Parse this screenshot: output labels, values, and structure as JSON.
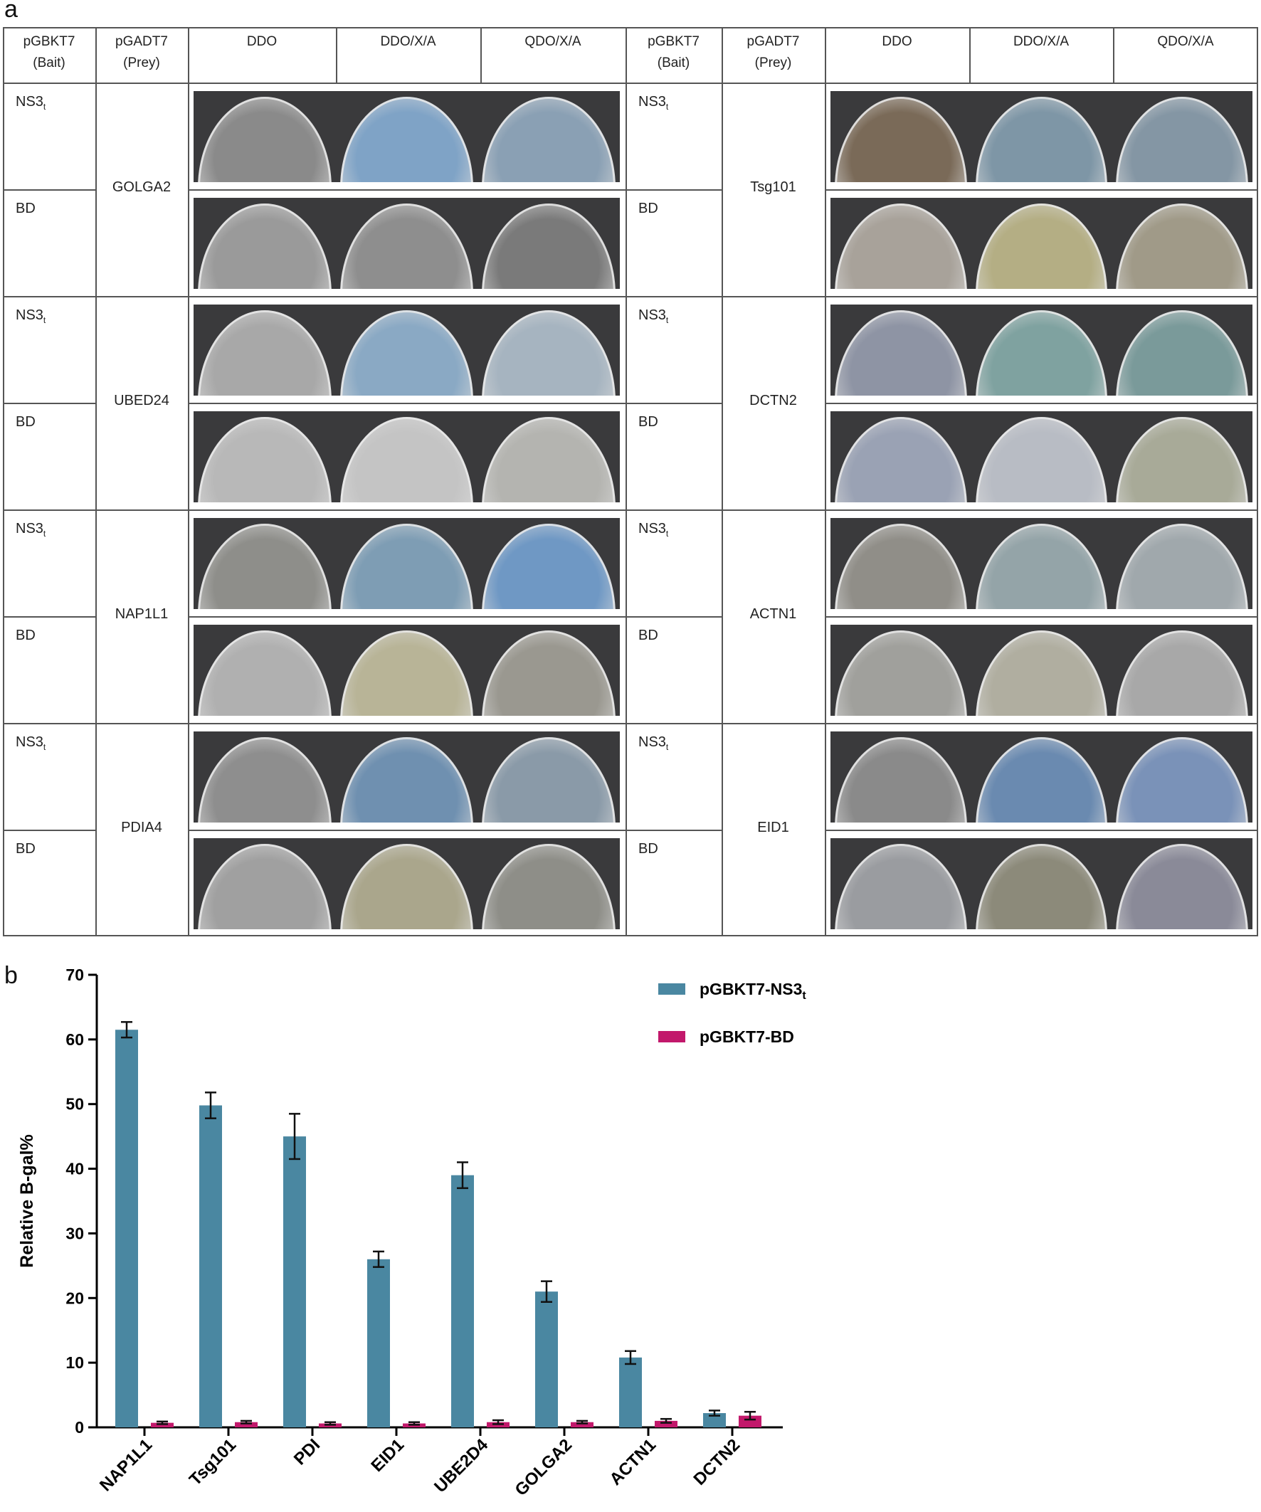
{
  "panel_a": {
    "label": "a",
    "headers": {
      "bait": "pGBKT7\n(Bait)",
      "prey": "pGADT7\n(Prey)",
      "ddo": "DDO",
      "ddo_xa": "DDO/X/A",
      "qdo_xa": "QDO/X/A"
    },
    "bait_ns3": "NS3",
    "bait_ns3_sub": "t",
    "bait_bd": "BD",
    "left_groups": [
      {
        "prey": "GOLGA2",
        "ns3_colors": [
          "#8a8a8a",
          "#7fa3c6",
          "#8aa0b4"
        ],
        "bd_colors": [
          "#9a9a9a",
          "#8e8e8e",
          "#7a7a7a"
        ]
      },
      {
        "prey": "UBED24",
        "ns3_colors": [
          "#a8a8a8",
          "#8aa9c4",
          "#a6b4c0"
        ],
        "bd_colors": [
          "#b8b8b8",
          "#c4c4c4",
          "#b4b4b0"
        ]
      },
      {
        "prey": "NAP1L1",
        "ns3_colors": [
          "#8e8e8a",
          "#7e9db4",
          "#6f98c4"
        ],
        "bd_colors": [
          "#b0b0b0",
          "#b8b497",
          "#9a9890"
        ]
      },
      {
        "prey": "PDIA4",
        "ns3_colors": [
          "#8e8e8e",
          "#6f90b0",
          "#8a9aa8"
        ],
        "bd_colors": [
          "#a0a0a0",
          "#aaa68c",
          "#8e8e88"
        ]
      }
    ],
    "right_groups": [
      {
        "prey": "Tsg101",
        "ns3_colors": [
          "#7a6a58",
          "#7e96a6",
          "#8496a4"
        ],
        "bd_colors": [
          "#a8a29a",
          "#b4ae84",
          "#a09a88"
        ]
      },
      {
        "prey": "DCTN2",
        "ns3_colors": [
          "#8e94a4",
          "#7fa2a0",
          "#7a9a9a"
        ],
        "bd_colors": [
          "#9aa2b4",
          "#b8bcc4",
          "#a8aa98"
        ]
      },
      {
        "prey": "ACTN1",
        "ns3_colors": [
          "#908e88",
          "#94a4a8",
          "#a0a8ac"
        ],
        "bd_colors": [
          "#a0a09c",
          "#b0aea0",
          "#a8a8a8"
        ]
      },
      {
        "prey": "EID1",
        "ns3_colors": [
          "#8a8a8a",
          "#6a8ab0",
          "#7a92b8"
        ],
        "bd_colors": [
          "#9a9ca0",
          "#8c8a7a",
          "#8a8a98"
        ]
      }
    ]
  },
  "panel_b": {
    "label": "b"
  },
  "chart_data": {
    "type": "bar",
    "ylabel": "Relative B-gal%",
    "ylim": [
      0,
      70
    ],
    "yticks": [
      0,
      10,
      20,
      30,
      40,
      50,
      60,
      70
    ],
    "categories": [
      "NAP1L1",
      "Tsg101",
      "PDI",
      "EID1",
      "UBE2D4",
      "GOLGA2",
      "ACTN1",
      "DCTN2"
    ],
    "series": [
      {
        "name": "pGBKT7-NS3",
        "name_sub": "t",
        "color": "#4a87a1",
        "values": [
          61.5,
          49.8,
          45.0,
          26.0,
          39.0,
          21.0,
          10.8,
          2.2
        ],
        "errors": [
          1.2,
          2.0,
          3.5,
          1.2,
          2.0,
          1.6,
          1.0,
          0.4
        ]
      },
      {
        "name": "pGBKT7-BD",
        "color": "#c2186b",
        "values": [
          0.7,
          0.8,
          0.6,
          0.6,
          0.8,
          0.8,
          1.0,
          1.8
        ],
        "errors": [
          0.2,
          0.2,
          0.2,
          0.2,
          0.3,
          0.2,
          0.3,
          0.6
        ]
      }
    ],
    "legend_position": "top-right",
    "grid": false
  }
}
